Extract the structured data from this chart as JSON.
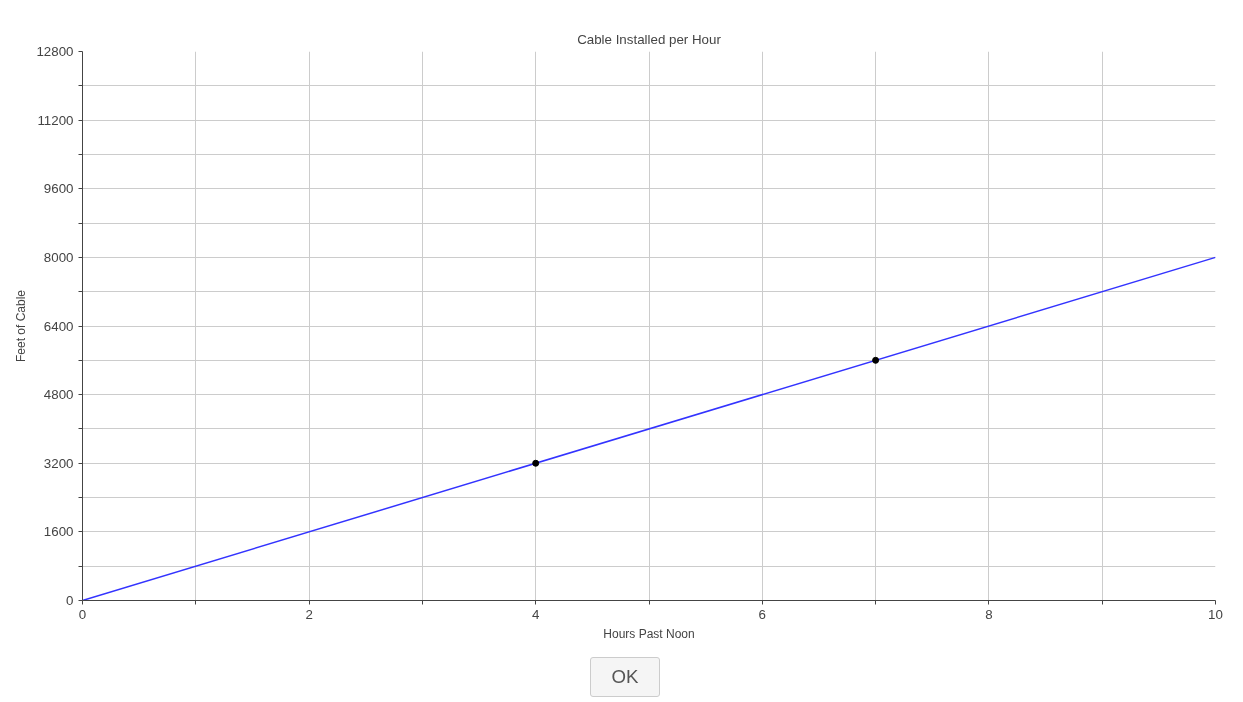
{
  "chart_data": {
    "type": "line",
    "title": "Cable Installed per Hour",
    "xlabel": "Hours Past Noon",
    "ylabel": "Feet of Cable",
    "series": [
      {
        "color": "#3333ff",
        "x": [
          0,
          10
        ],
        "values": [
          0,
          8000
        ]
      },
      {
        "type": "scatter",
        "color": "#000000",
        "x": [
          4,
          7
        ],
        "values": [
          3200,
          5600
        ]
      }
    ],
    "xlim": [
      0,
      10
    ],
    "ylim": [
      0,
      12800
    ],
    "xticks": [
      0,
      {
        "value": 1,
        "label": null
      },
      2,
      {
        "value": 3,
        "label": null
      },
      4,
      {
        "value": 5,
        "label": null
      },
      6,
      {
        "value": 7,
        "label": null
      },
      8,
      {
        "value": 9,
        "label": null
      },
      10
    ],
    "yticks": [
      0,
      {
        "value": 800,
        "label": null
      },
      1600,
      {
        "value": 2400,
        "label": null
      },
      3200,
      {
        "value": 4000,
        "label": null
      },
      4800,
      {
        "value": 5600,
        "label": null
      },
      6400,
      {
        "value": 7200,
        "label": null
      },
      8000,
      {
        "value": 8800,
        "label": null
      },
      9600,
      {
        "value": 10400,
        "label": null
      },
      11200,
      {
        "value": 12000,
        "label": null
      },
      12800
    ],
    "grid": true,
    "annotations": [
      "OK"
    ]
  }
}
